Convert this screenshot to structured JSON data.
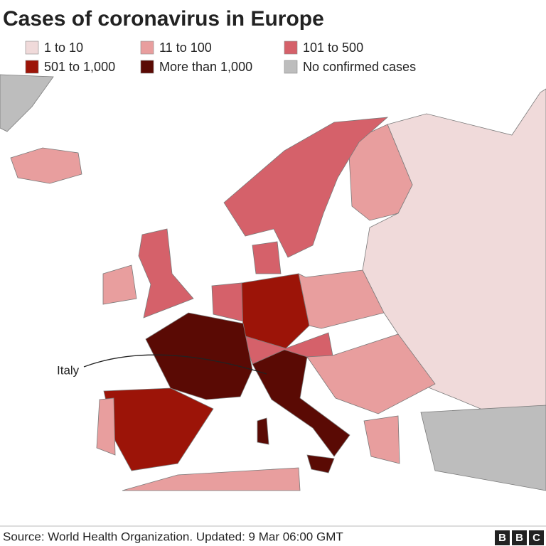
{
  "title": "Cases of coronavirus in Europe",
  "legend": [
    {
      "label": "1 to 10",
      "color": "#f0dada"
    },
    {
      "label": "11 to 100",
      "color": "#e89e9e"
    },
    {
      "label": "101 to 500",
      "color": "#d5616a"
    },
    {
      "label": "501 to 1,000",
      "color": "#9c1408"
    },
    {
      "label": "More than 1,000",
      "color": "#5a0a04"
    },
    {
      "label": "No confirmed cases",
      "color": "#bdbdbd"
    }
  ],
  "annotation": "Italy",
  "source": "Source: World Health Organization. Updated: 9 Mar 06:00 GMT",
  "logo": [
    "B",
    "B",
    "C"
  ]
}
